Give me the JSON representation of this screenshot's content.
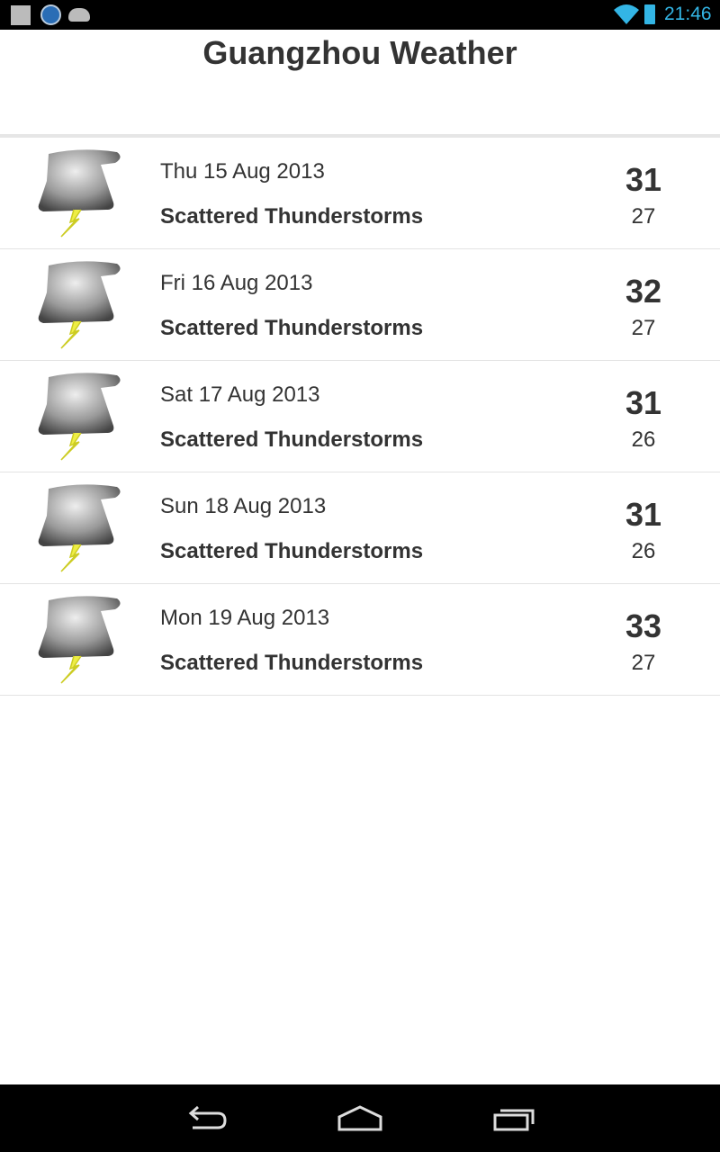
{
  "status_bar": {
    "time": "21:46",
    "notification_icons": [
      "ebay-icon",
      "k-app-icon",
      "android-icon"
    ],
    "accent": "#33b5e5"
  },
  "header": {
    "title": "Guangzhou Weather"
  },
  "forecast": [
    {
      "date": "Thu 15 Aug 2013",
      "condition": "Scattered Thunderstorms",
      "high": "31",
      "low": "27",
      "icon": "thunderstorm-icon"
    },
    {
      "date": "Fri 16 Aug 2013",
      "condition": "Scattered Thunderstorms",
      "high": "32",
      "low": "27",
      "icon": "thunderstorm-icon"
    },
    {
      "date": "Sat 17 Aug 2013",
      "condition": "Scattered Thunderstorms",
      "high": "31",
      "low": "26",
      "icon": "thunderstorm-icon"
    },
    {
      "date": "Sun 18 Aug 2013",
      "condition": "Scattered Thunderstorms",
      "high": "31",
      "low": "26",
      "icon": "thunderstorm-icon"
    },
    {
      "date": "Mon 19 Aug 2013",
      "condition": "Scattered Thunderstorms",
      "high": "33",
      "low": "27",
      "icon": "thunderstorm-icon"
    }
  ],
  "nav_bar": {
    "buttons": [
      "back-icon",
      "home-icon",
      "recent-apps-icon"
    ]
  }
}
